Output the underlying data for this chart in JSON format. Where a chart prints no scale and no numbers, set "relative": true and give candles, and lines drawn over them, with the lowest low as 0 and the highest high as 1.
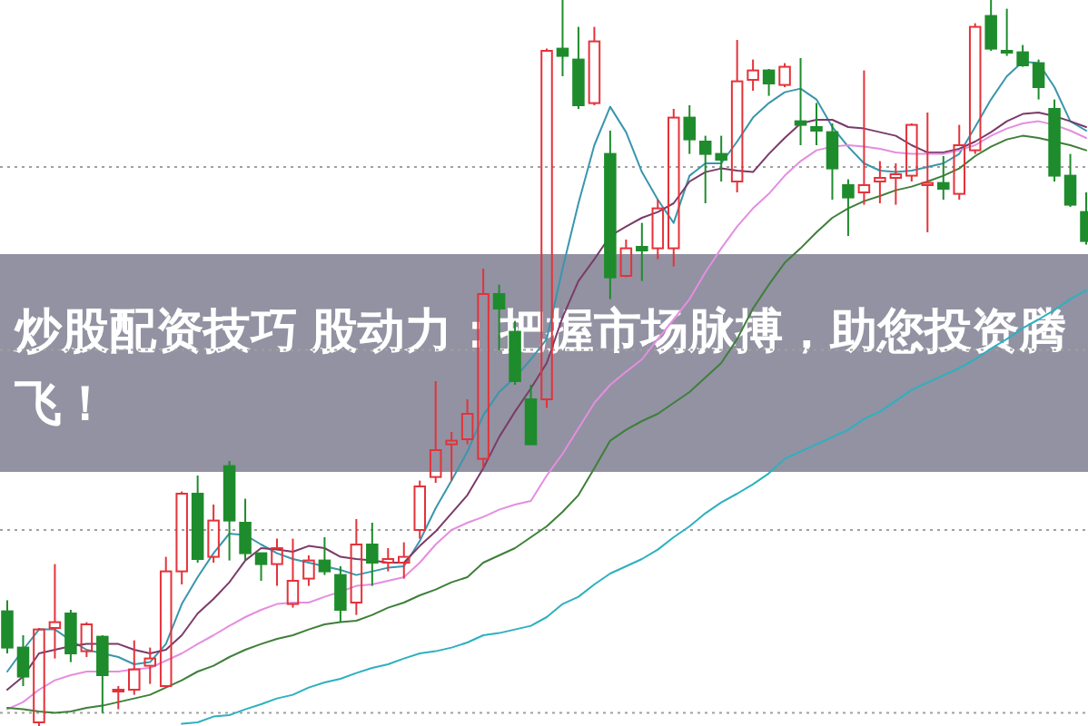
{
  "chart_data": {
    "type": "candlestick",
    "relative": true,
    "title": "炒股配资技巧 股动力：把握市场脉搏，助您投资腾飞！",
    "categories": [
      null,
      null,
      null,
      null,
      null,
      null,
      null,
      null,
      null,
      null,
      null,
      null,
      null,
      null,
      null,
      null,
      null,
      null,
      null,
      null,
      null,
      null,
      null,
      null,
      null,
      null,
      null,
      null,
      null,
      null,
      null,
      null,
      null,
      null,
      null,
      null,
      null,
      null,
      null,
      null,
      null,
      null,
      null,
      null,
      null,
      null,
      null,
      null,
      null,
      null,
      null,
      null,
      null,
      null,
      null,
      null,
      null,
      null,
      null,
      null,
      null,
      null,
      null,
      null,
      null,
      null,
      null,
      null,
      null
    ],
    "ohlc": [
      [
        0.158,
        0.173,
        0.1,
        0.108
      ],
      [
        0.108,
        0.125,
        0.055,
        0.068
      ],
      [
        0.005,
        0.135,
        0,
        0.133
      ],
      [
        0.135,
        0.223,
        0.093,
        0.143
      ],
      [
        0.155,
        0.16,
        0.088,
        0.1
      ],
      [
        0.103,
        0.143,
        0.095,
        0.14
      ],
      [
        0.123,
        0.125,
        0.018,
        0.07
      ],
      [
        0.048,
        0.055,
        0.023,
        0.05
      ],
      [
        0.05,
        0.118,
        0.043,
        0.078
      ],
      [
        0.083,
        0.108,
        0.058,
        0.093
      ],
      [
        0.055,
        0.233,
        0.053,
        0.213
      ],
      [
        0.213,
        0.323,
        0.195,
        0.32
      ],
      [
        0.32,
        0.345,
        0.225,
        0.23
      ],
      [
        0.233,
        0.305,
        0.225,
        0.283
      ],
      [
        0.358,
        0.365,
        0.228,
        0.283
      ],
      [
        0.28,
        0.313,
        0.228,
        0.238
      ],
      [
        0.238,
        0.238,
        0.2,
        0.223
      ],
      [
        0.223,
        0.258,
        0.193,
        0.245
      ],
      [
        0.168,
        0.258,
        0.163,
        0.2
      ],
      [
        0.203,
        0.235,
        0.193,
        0.228
      ],
      [
        0.228,
        0.26,
        0.208,
        0.213
      ],
      [
        0.208,
        0.22,
        0.143,
        0.16
      ],
      [
        0.17,
        0.285,
        0.153,
        0.25
      ],
      [
        0.25,
        0.28,
        0.193,
        0.225
      ],
      [
        0.225,
        0.245,
        0.213,
        0.23
      ],
      [
        0.225,
        0.253,
        0.203,
        0.233
      ],
      [
        0.27,
        0.338,
        0.258,
        0.33
      ],
      [
        0.343,
        0.475,
        0.335,
        0.38
      ],
      [
        0.388,
        0.405,
        0.338,
        0.393
      ],
      [
        0.395,
        0.45,
        0.388,
        0.43
      ],
      [
        0.368,
        0.63,
        0.355,
        0.595
      ],
      [
        0.595,
        0.608,
        0.518,
        0.575
      ],
      [
        0.543,
        0.558,
        0.47,
        0.475
      ],
      [
        0.45,
        0.47,
        0.388,
        0.388
      ],
      [
        0.45,
        0.933,
        0.438,
        0.93
      ],
      [
        0.933,
        1,
        0.895,
        0.923
      ],
      [
        0.918,
        0.963,
        0.85,
        0.855
      ],
      [
        0.858,
        0.963,
        0.855,
        0.943
      ],
      [
        0.788,
        0.82,
        0.588,
        0.618
      ],
      [
        0.62,
        0.67,
        0.618,
        0.658
      ],
      [
        0.66,
        0.693,
        0.613,
        0.655
      ],
      [
        0.658,
        0.725,
        0.643,
        0.713
      ],
      [
        0.658,
        0.85,
        0.633,
        0.838
      ],
      [
        0.838,
        0.855,
        0.788,
        0.808
      ],
      [
        0.805,
        0.813,
        0.72,
        0.788
      ],
      [
        0.788,
        0.813,
        0.75,
        0.78
      ],
      [
        0.75,
        0.945,
        0.735,
        0.888
      ],
      [
        0.89,
        0.918,
        0.875,
        0.903
      ],
      [
        0.903,
        0.905,
        0.868,
        0.885
      ],
      [
        0.883,
        0.913,
        0.88,
        0.908
      ],
      [
        0.833,
        0.92,
        0.8,
        0.828
      ],
      [
        0.825,
        0.858,
        0.8,
        0.82
      ],
      [
        0.818,
        0.83,
        0.725,
        0.768
      ],
      [
        0.745,
        0.753,
        0.675,
        0.728
      ],
      [
        0.735,
        0.903,
        0.718,
        0.745
      ],
      [
        0.75,
        0.778,
        0.72,
        0.755
      ],
      [
        0.755,
        0.775,
        0.718,
        0.76
      ],
      [
        0.758,
        0.83,
        0.75,
        0.828
      ],
      [
        0.745,
        0.845,
        0.68,
        0.748
      ],
      [
        0.748,
        0.785,
        0.725,
        0.74
      ],
      [
        0.733,
        0.828,
        0.725,
        0.8
      ],
      [
        0.793,
        0.968,
        0.788,
        0.963
      ],
      [
        0.978,
        1,
        0.93,
        0.933
      ],
      [
        0.93,
        0.988,
        0.923,
        0.928
      ],
      [
        0.928,
        0.938,
        0.908,
        0.91
      ],
      [
        0.913,
        0.918,
        0.863,
        0.88
      ],
      [
        0.85,
        0.863,
        0.75,
        0.758
      ],
      [
        0.758,
        0.788,
        0.715,
        0.718
      ],
      [
        0.708,
        0.735,
        0.663,
        0.668
      ]
    ],
    "colors": [
      "#1e8c2c",
      "#1e8c2c",
      "#e5323a",
      "#e5323a",
      "#1e8c2c",
      "#e5323a",
      "#1e8c2c",
      "#e5323a",
      "#e5323a",
      "#e5323a",
      "#e5323a",
      "#e5323a",
      "#1e8c2c",
      "#e5323a",
      "#1e8c2c",
      "#1e8c2c",
      "#1e8c2c",
      "#e5323a",
      "#e5323a",
      "#e5323a",
      "#1e8c2c",
      "#1e8c2c",
      "#e5323a",
      "#1e8c2c",
      "#e5323a",
      "#e5323a",
      "#e5323a",
      "#e5323a",
      "#e5323a",
      "#e5323a",
      "#e5323a",
      "#1e8c2c",
      "#1e8c2c",
      "#1e8c2c",
      "#e5323a",
      "#1e8c2c",
      "#1e8c2c",
      "#e5323a",
      "#1e8c2c",
      "#e5323a",
      "#1e8c2c",
      "#e5323a",
      "#e5323a",
      "#1e8c2c",
      "#1e8c2c",
      "#1e8c2c",
      "#e5323a",
      "#e5323a",
      "#1e8c2c",
      "#e5323a",
      "#1e8c2c",
      "#1e8c2c",
      "#1e8c2c",
      "#1e8c2c",
      "#e5323a",
      "#e5323a",
      "#e5323a",
      "#e5323a",
      "#e5323a",
      "#1e8c2c",
      "#e5323a",
      "#e5323a",
      "#1e8c2c",
      "#1e8c2c",
      "#1e8c2c",
      "#1e8c2c",
      "#1e8c2c",
      "#1e8c2c",
      "#1e8c2c"
    ],
    "series": [
      {
        "type": "line",
        "color": "#3a96ad",
        "values": [
          0.075,
          0.105,
          0.133,
          0.133,
          0.118,
          0.105,
          0.1,
          0.095,
          0.085,
          0.088,
          0.113,
          0.168,
          0.205,
          0.238,
          0.265,
          0.263,
          0.25,
          0.238,
          0.23,
          0.225,
          0.22,
          0.215,
          0.208,
          0.213,
          0.218,
          0.22,
          0.255,
          0.3,
          0.338,
          0.378,
          0.428,
          0.46,
          0.48,
          0.505,
          0.533,
          0.63,
          0.72,
          0.8,
          0.853,
          0.818,
          0.763,
          0.725,
          0.693,
          0.758,
          0.775,
          0.775,
          0.805,
          0.838,
          0.858,
          0.873,
          0.878,
          0.863,
          0.825,
          0.798,
          0.775,
          0.765,
          0.763,
          0.765,
          0.77,
          0.775,
          0.788,
          0.825,
          0.863,
          0.895,
          0.915,
          0.913,
          0.88,
          0.833,
          0.82
        ]
      },
      {
        "type": "line",
        "color": "#7b3b68",
        "values": [
          0.05,
          0.068,
          0.1,
          0.105,
          0.11,
          0.113,
          0.113,
          0.113,
          0.105,
          0.1,
          0.105,
          0.125,
          0.155,
          0.175,
          0.198,
          0.228,
          0.245,
          0.243,
          0.24,
          0.248,
          0.245,
          0.233,
          0.23,
          0.228,
          0.225,
          0.225,
          0.248,
          0.268,
          0.293,
          0.318,
          0.355,
          0.398,
          0.433,
          0.465,
          0.5,
          0.563,
          0.613,
          0.643,
          0.675,
          0.688,
          0.7,
          0.708,
          0.72,
          0.75,
          0.763,
          0.768,
          0.765,
          0.763,
          0.788,
          0.81,
          0.83,
          0.835,
          0.835,
          0.825,
          0.823,
          0.818,
          0.813,
          0.8,
          0.79,
          0.79,
          0.795,
          0.805,
          0.818,
          0.833,
          0.843,
          0.845,
          0.84,
          0.833,
          0.825
        ]
      },
      {
        "type": "line",
        "color": "#e48ee0",
        "values": [
          0.023,
          0.033,
          0.05,
          0.063,
          0.07,
          0.075,
          0.075,
          0.075,
          0.078,
          0.08,
          0.09,
          0.1,
          0.113,
          0.125,
          0.138,
          0.15,
          0.16,
          0.168,
          0.17,
          0.17,
          0.178,
          0.185,
          0.193,
          0.195,
          0.2,
          0.205,
          0.225,
          0.25,
          0.27,
          0.28,
          0.288,
          0.298,
          0.305,
          0.31,
          0.345,
          0.375,
          0.41,
          0.445,
          0.47,
          0.488,
          0.505,
          0.533,
          0.56,
          0.588,
          0.625,
          0.658,
          0.688,
          0.713,
          0.733,
          0.758,
          0.778,
          0.793,
          0.798,
          0.8,
          0.798,
          0.795,
          0.79,
          0.788,
          0.788,
          0.788,
          0.793,
          0.8,
          0.813,
          0.823,
          0.83,
          0.833,
          0.828,
          0.82,
          0.81
        ]
      },
      {
        "type": "line",
        "color": "#3f7f3a",
        "values": [
          0.025,
          0.023,
          0.02,
          0.018,
          0.02,
          0.025,
          0.028,
          0.033,
          0.038,
          0.043,
          0.053,
          0.063,
          0.075,
          0.083,
          0.095,
          0.105,
          0.113,
          0.12,
          0.125,
          0.133,
          0.14,
          0.143,
          0.145,
          0.153,
          0.163,
          0.17,
          0.18,
          0.188,
          0.198,
          0.205,
          0.225,
          0.235,
          0.245,
          0.26,
          0.275,
          0.295,
          0.318,
          0.355,
          0.393,
          0.408,
          0.42,
          0.43,
          0.445,
          0.46,
          0.48,
          0.5,
          0.533,
          0.575,
          0.608,
          0.638,
          0.658,
          0.68,
          0.7,
          0.713,
          0.723,
          0.73,
          0.738,
          0.743,
          0.75,
          0.758,
          0.768,
          0.785,
          0.798,
          0.808,
          0.813,
          0.81,
          0.805,
          0.8,
          0.793
        ]
      },
      {
        "type": "line",
        "color": "#2db0c0",
        "values": [
          null,
          null,
          null,
          null,
          null,
          null,
          null,
          null,
          null,
          null,
          null,
          0.003,
          0.005,
          0.013,
          0.015,
          0.023,
          0.03,
          0.038,
          0.043,
          0.053,
          0.06,
          0.065,
          0.073,
          0.08,
          0.085,
          0.093,
          0.1,
          0.103,
          0.108,
          0.115,
          0.125,
          0.128,
          0.133,
          0.138,
          0.15,
          0.168,
          0.178,
          0.195,
          0.21,
          0.22,
          0.23,
          0.243,
          0.26,
          0.275,
          0.293,
          0.308,
          0.32,
          0.333,
          0.348,
          0.368,
          0.378,
          0.388,
          0.398,
          0.408,
          0.423,
          0.433,
          0.448,
          0.463,
          0.473,
          0.483,
          0.493,
          0.505,
          0.52,
          0.533,
          0.548,
          0.56,
          0.573,
          0.588,
          0.6
        ]
      }
    ],
    "ref_lines": [
      {
        "axis": "y",
        "value": 0.77,
        "line_style": "dotted",
        "color": "#a0a0a0"
      },
      {
        "axis": "y",
        "value": 0.518,
        "line_style": "dotted",
        "color": "#a0a0a0"
      },
      {
        "axis": "y",
        "value": 0.27,
        "line_style": "dotted",
        "color": "#a0a0a0"
      },
      {
        "axis": "y",
        "value": 0.018,
        "line_style": "dotted",
        "color": "#a0a0a0"
      }
    ]
  }
}
